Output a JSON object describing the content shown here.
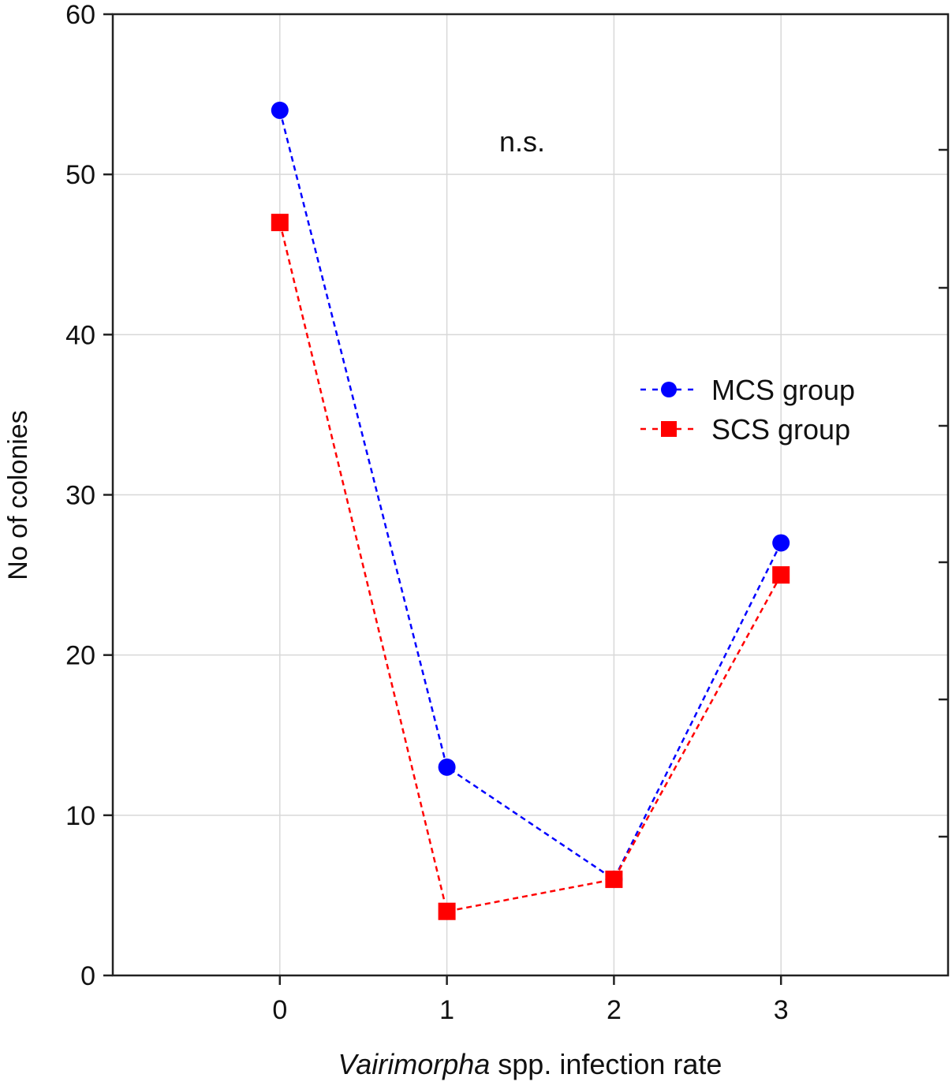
{
  "chart_data": {
    "type": "line",
    "title": "",
    "xlabel_italic": "Vairimorpha",
    "xlabel_rest": " spp. infection rate",
    "ylabel": "No of colonies",
    "x": [
      0,
      1,
      2,
      3
    ],
    "xlim": [
      -1,
      4
    ],
    "ylim": [
      0,
      60
    ],
    "xticks": [
      0,
      1,
      2,
      3
    ],
    "yticks": [
      0,
      10,
      20,
      30,
      40,
      50,
      60
    ],
    "grid": true,
    "legend_placement": "right-center",
    "annotation": "n.s.",
    "series": [
      {
        "name": "MCS group",
        "values": [
          54,
          13,
          6,
          27
        ],
        "color": "#0000ff",
        "marker": "circle",
        "line": "dashed"
      },
      {
        "name": "SCS group",
        "values": [
          47,
          4,
          6,
          25
        ],
        "color": "#ff0000",
        "marker": "square",
        "line": "dashed"
      }
    ]
  }
}
